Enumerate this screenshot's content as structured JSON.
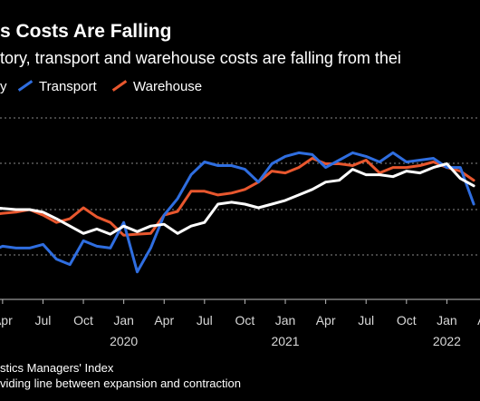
{
  "header": {
    "title": "s Costs Are Falling",
    "subtitle": "tory, transport and warehouse costs are falling from thei"
  },
  "footnotes": {
    "source": "stics Managers' Index",
    "note": "viding line between expansion and contraction"
  },
  "colors": {
    "background": "#000000",
    "inventory": "#ffffff",
    "transport": "#2f6ee0",
    "warehouse": "#e8572e",
    "gridline": "#8a8a8a",
    "tick_label": "#d8d8d8"
  },
  "chart_data": {
    "type": "line",
    "title": "s Costs Are Falling",
    "legend": [
      "y",
      "Transport",
      "Warehouse"
    ],
    "x_tick_labels": [
      "Apr",
      "Jul",
      "Oct",
      "Jan",
      "Apr",
      "Jul",
      "Oct",
      "Jan",
      "Apr",
      "Jul",
      "Oct",
      "Jan",
      "Apr"
    ],
    "x_tick_years": [
      {
        "label": "2020",
        "tick_index": 3
      },
      {
        "label": "2021",
        "tick_index": 7
      },
      {
        "label": "2022",
        "tick_index": 11
      }
    ],
    "x_range": [
      0,
      37
    ],
    "y_range": [
      39,
      89
    ],
    "grid": "horizontal dotted",
    "series": [
      {
        "name": "y",
        "color_key": "inventory",
        "values": [
          [
            0,
            64.2
          ],
          [
            1,
            63.8
          ],
          [
            2,
            63.5
          ],
          [
            3,
            63.5
          ],
          [
            4,
            62.8
          ],
          [
            5,
            61.0
          ],
          [
            6,
            59.0
          ],
          [
            7,
            57.0
          ],
          [
            8,
            58.2
          ],
          [
            9,
            56.8
          ],
          [
            10,
            59.0
          ],
          [
            11,
            57.5
          ],
          [
            12,
            59.0
          ],
          [
            13,
            59.5
          ],
          [
            14,
            57.0
          ],
          [
            15,
            59.0
          ],
          [
            16,
            60.0
          ],
          [
            17,
            65.0
          ],
          [
            18,
            65.5
          ],
          [
            19,
            65.0
          ],
          [
            20,
            64.0
          ],
          [
            21,
            65.0
          ],
          [
            22,
            66.0
          ],
          [
            23,
            67.5
          ],
          [
            24,
            69.0
          ],
          [
            25,
            71.0
          ],
          [
            26,
            71.5
          ],
          [
            27,
            74.5
          ],
          [
            28,
            73.0
          ],
          [
            29,
            73.0
          ],
          [
            30,
            72.5
          ],
          [
            31,
            74.0
          ],
          [
            32,
            73.5
          ],
          [
            33,
            75.0
          ],
          [
            34,
            76.0
          ],
          [
            35,
            72.0
          ],
          [
            36,
            70.0
          ]
        ]
      },
      {
        "name": "Transport",
        "color_key": "transport",
        "values": [
          [
            0,
            52.0
          ],
          [
            1,
            53.5
          ],
          [
            2,
            53.0
          ],
          [
            3,
            53.0
          ],
          [
            4,
            54.0
          ],
          [
            5,
            50.0
          ],
          [
            6,
            48.5
          ],
          [
            7,
            55.0
          ],
          [
            8,
            53.5
          ],
          [
            9,
            53.0
          ],
          [
            10,
            60.0
          ],
          [
            11,
            46.5
          ],
          [
            12,
            53.0
          ],
          [
            13,
            62.0
          ],
          [
            14,
            66.5
          ],
          [
            15,
            73.0
          ],
          [
            16,
            76.5
          ],
          [
            17,
            75.5
          ],
          [
            18,
            75.5
          ],
          [
            19,
            74.5
          ],
          [
            20,
            71.0
          ],
          [
            21,
            76.0
          ],
          [
            22,
            78.0
          ],
          [
            23,
            79.0
          ],
          [
            24,
            78.5
          ],
          [
            25,
            75.0
          ],
          [
            26,
            77.0
          ],
          [
            27,
            79.0
          ],
          [
            28,
            78.0
          ],
          [
            29,
            76.5
          ],
          [
            30,
            79.0
          ],
          [
            31,
            76.5
          ],
          [
            32,
            77.0
          ],
          [
            33,
            77.5
          ],
          [
            34,
            75.0
          ],
          [
            35,
            75.0
          ],
          [
            36,
            65.0
          ]
        ]
      },
      {
        "name": "Warehouse",
        "color_key": "warehouse",
        "values": [
          [
            0,
            62.0
          ],
          [
            1,
            62.5
          ],
          [
            2,
            62.8
          ],
          [
            3,
            63.5
          ],
          [
            4,
            62.0
          ],
          [
            5,
            60.0
          ],
          [
            6,
            61.0
          ],
          [
            7,
            64.0
          ],
          [
            8,
            61.5
          ],
          [
            9,
            60.0
          ],
          [
            10,
            56.5
          ],
          [
            11,
            56.8
          ],
          [
            12,
            57.0
          ],
          [
            13,
            62.0
          ],
          [
            14,
            63.0
          ],
          [
            15,
            68.5
          ],
          [
            16,
            68.5
          ],
          [
            17,
            67.5
          ],
          [
            18,
            68.0
          ],
          [
            19,
            69.0
          ],
          [
            20,
            71.0
          ],
          [
            21,
            74.0
          ],
          [
            22,
            73.5
          ],
          [
            23,
            75.0
          ],
          [
            24,
            77.5
          ],
          [
            25,
            76.0
          ],
          [
            26,
            76.0
          ],
          [
            27,
            75.5
          ],
          [
            28,
            77.0
          ],
          [
            29,
            73.5
          ],
          [
            30,
            75.0
          ],
          [
            31,
            75.0
          ],
          [
            32,
            75.5
          ],
          [
            33,
            76.5
          ],
          [
            34,
            75.0
          ],
          [
            35,
            74.0
          ],
          [
            36,
            71.5
          ]
        ]
      }
    ],
    "annotations": [
      {
        "text": "viding line between expansion and contraction"
      }
    ]
  }
}
